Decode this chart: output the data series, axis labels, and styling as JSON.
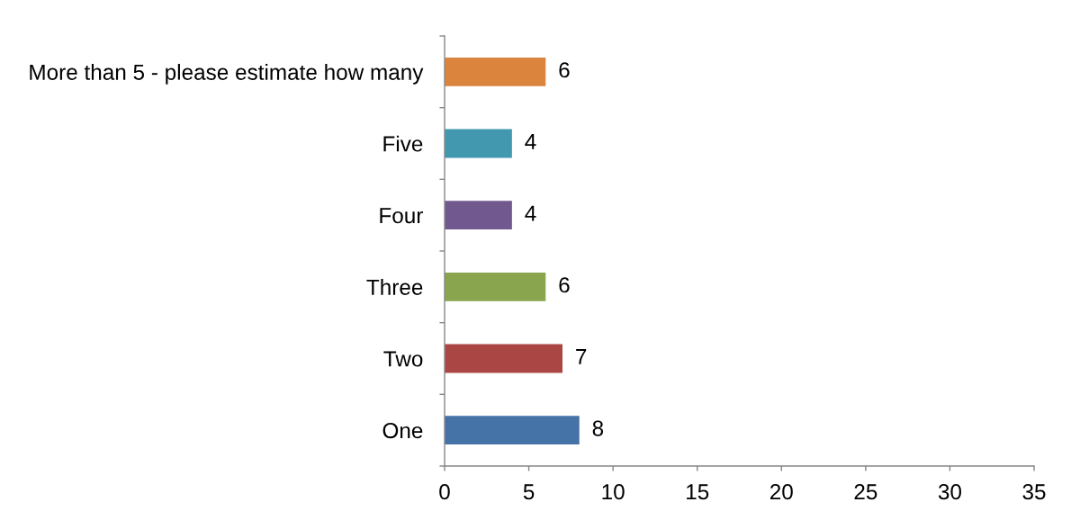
{
  "chart_data": {
    "type": "bar",
    "orientation": "horizontal",
    "categories": [
      "More than 5 - please estimate how many",
      "Five",
      "Four",
      "Three",
      "Two",
      "One"
    ],
    "values": [
      6,
      4,
      4,
      6,
      7,
      8
    ],
    "colors": [
      "#db843d",
      "#4198af",
      "#71588f",
      "#89a54e",
      "#aa4643",
      "#4572a7"
    ],
    "xlim": [
      0,
      35
    ],
    "xticks": [
      0,
      5,
      10,
      15,
      20,
      25,
      30,
      35
    ],
    "data_labels": true
  }
}
